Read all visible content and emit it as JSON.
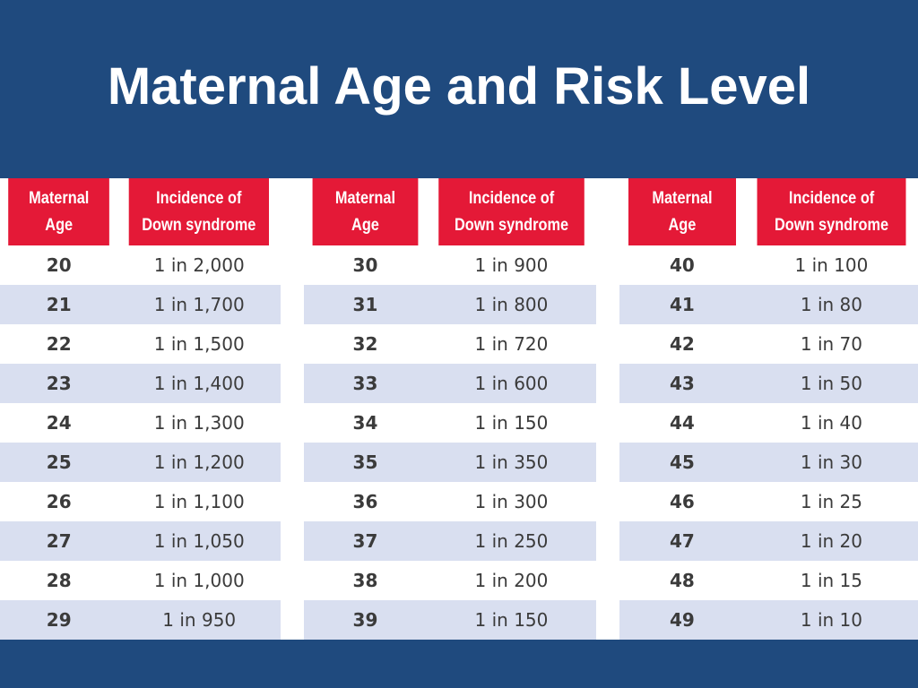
{
  "slide": {
    "title": "Maternal Age and Risk Level",
    "colors": {
      "background": "#1f4a7e",
      "header": "#e41937",
      "stripe": "#d9dff0"
    }
  },
  "table": {
    "header": {
      "age_line1": "Maternal",
      "age_line2": "Age",
      "incidence_line1": "Incidence of",
      "incidence_line2": "Down syndrome"
    },
    "panels": [
      {
        "rows": [
          {
            "age": "20",
            "incidence": "1 in 2,000"
          },
          {
            "age": "21",
            "incidence": "1 in 1,700"
          },
          {
            "age": "22",
            "incidence": "1 in 1,500"
          },
          {
            "age": "23",
            "incidence": "1 in 1,400"
          },
          {
            "age": "24",
            "incidence": "1 in 1,300"
          },
          {
            "age": "25",
            "incidence": "1 in 1,200"
          },
          {
            "age": "26",
            "incidence": "1 in 1,100"
          },
          {
            "age": "27",
            "incidence": "1 in 1,050"
          },
          {
            "age": "28",
            "incidence": "1 in 1,000"
          },
          {
            "age": "29",
            "incidence": "1 in 950"
          }
        ]
      },
      {
        "rows": [
          {
            "age": "30",
            "incidence": "1 in 900"
          },
          {
            "age": "31",
            "incidence": "1 in 800"
          },
          {
            "age": "32",
            "incidence": "1 in 720"
          },
          {
            "age": "33",
            "incidence": "1 in 600"
          },
          {
            "age": "34",
            "incidence": "1 in 150"
          },
          {
            "age": "35",
            "incidence": "1 in 350"
          },
          {
            "age": "36",
            "incidence": "1 in 300"
          },
          {
            "age": "37",
            "incidence": "1 in 250"
          },
          {
            "age": "38",
            "incidence": "1 in 200"
          },
          {
            "age": "39",
            "incidence": "1 in 150"
          }
        ]
      },
      {
        "rows": [
          {
            "age": "40",
            "incidence": "1 in 100"
          },
          {
            "age": "41",
            "incidence": "1 in 80"
          },
          {
            "age": "42",
            "incidence": "1 in 70"
          },
          {
            "age": "43",
            "incidence": "1 in 50"
          },
          {
            "age": "44",
            "incidence": "1 in 40"
          },
          {
            "age": "45",
            "incidence": "1 in 30"
          },
          {
            "age": "46",
            "incidence": "1 in 25"
          },
          {
            "age": "47",
            "incidence": "1 in 20"
          },
          {
            "age": "48",
            "incidence": "1 in 15"
          },
          {
            "age": "49",
            "incidence": "1 in 10"
          }
        ]
      }
    ]
  }
}
